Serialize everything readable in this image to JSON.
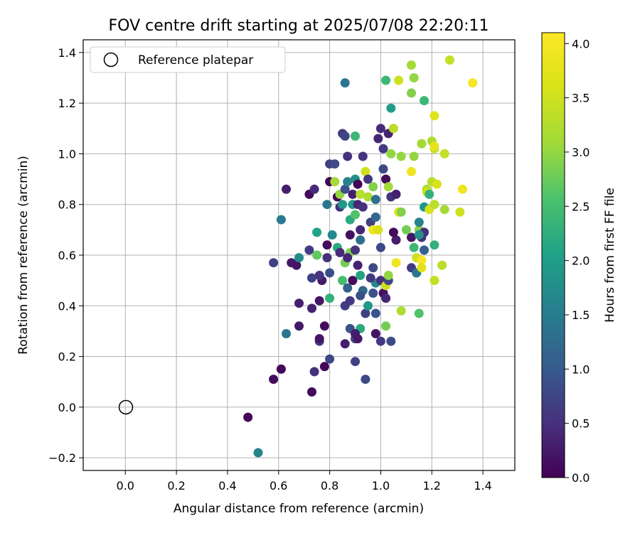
{
  "chart_data": {
    "type": "scatter",
    "title": "FOV centre drift starting at 2025/07/08 22:20:11",
    "xlabel": "Angular distance from reference (arcmin)",
    "ylabel": "Rotation from reference (arcmin)",
    "xlim": [
      -0.165,
      1.525
    ],
    "ylim": [
      -0.25,
      1.45
    ],
    "x_ticks": [
      0.0,
      0.2,
      0.4,
      0.6,
      0.8,
      1.0,
      1.2,
      1.4
    ],
    "x_tick_labels": [
      "0.0",
      "0.2",
      "0.4",
      "0.6",
      "0.8",
      "1.0",
      "1.2",
      "1.4"
    ],
    "y_ticks": [
      -0.2,
      0.0,
      0.2,
      0.4,
      0.6,
      0.8,
      1.0,
      1.2,
      1.4
    ],
    "y_tick_labels": [
      "−0.2",
      "0.0",
      "0.2",
      "0.4",
      "0.6",
      "0.8",
      "1.0",
      "1.2",
      "1.4"
    ],
    "grid": true,
    "legend": {
      "placement": "top-left",
      "entries": [
        "Reference platepar"
      ]
    },
    "reference_point": {
      "x": 0.0,
      "y": 0.0
    },
    "colorbar": {
      "label": "Hours from first FF file",
      "colormap": "viridis",
      "range": [
        0.0,
        4.1
      ],
      "ticks": [
        0.0,
        0.5,
        1.0,
        1.5,
        2.0,
        2.5,
        3.0,
        3.5,
        4.0
      ],
      "tick_labels": [
        "0.0",
        "0.5",
        "1.0",
        "1.5",
        "2.0",
        "2.5",
        "3.0",
        "3.5",
        "4.0"
      ]
    },
    "points": [
      [
        0.48,
        -0.04,
        0.05
      ],
      [
        0.52,
        -0.18,
        1.6
      ],
      [
        0.58,
        0.11,
        0.1
      ],
      [
        0.61,
        0.15,
        0.05
      ],
      [
        0.73,
        0.06,
        0.1
      ],
      [
        0.74,
        0.14,
        0.5
      ],
      [
        0.78,
        0.16,
        0.05
      ],
      [
        0.8,
        0.19,
        0.75
      ],
      [
        0.86,
        0.25,
        0.3
      ],
      [
        0.9,
        0.18,
        0.7
      ],
      [
        0.94,
        0.11,
        0.8
      ],
      [
        0.63,
        0.29,
        1.4
      ],
      [
        0.68,
        0.32,
        0.25
      ],
      [
        0.76,
        0.26,
        0.6
      ],
      [
        0.76,
        0.27,
        0.2
      ],
      [
        0.78,
        0.32,
        0.1
      ],
      [
        0.88,
        0.31,
        0.9
      ],
      [
        0.9,
        0.27,
        0.8
      ],
      [
        0.92,
        0.31,
        2.2
      ],
      [
        0.9,
        0.29,
        0.3
      ],
      [
        0.91,
        0.27,
        0.25
      ],
      [
        0.98,
        0.29,
        0.2
      ],
      [
        1.0,
        0.26,
        0.6
      ],
      [
        1.04,
        0.26,
        0.8
      ],
      [
        1.02,
        0.32,
        2.8
      ],
      [
        0.58,
        0.57,
        0.7
      ],
      [
        0.65,
        0.57,
        0.25
      ],
      [
        0.67,
        0.56,
        0.2
      ],
      [
        0.68,
        0.59,
        1.7
      ],
      [
        0.68,
        0.41,
        0.3
      ],
      [
        0.73,
        0.39,
        0.35
      ],
      [
        0.76,
        0.42,
        0.2
      ],
      [
        0.73,
        0.51,
        0.7
      ],
      [
        0.72,
        0.62,
        0.65
      ],
      [
        0.77,
        0.5,
        0.25
      ],
      [
        0.76,
        0.52,
        0.55
      ],
      [
        0.75,
        0.6,
        2.7
      ],
      [
        0.79,
        0.64,
        0.1
      ],
      [
        0.79,
        0.59,
        0.5
      ],
      [
        0.8,
        0.53,
        0.85
      ],
      [
        0.8,
        0.43,
        2.3
      ],
      [
        0.83,
        0.63,
        2.2
      ],
      [
        0.84,
        0.61,
        0.45
      ],
      [
        0.85,
        0.5,
        2.5
      ],
      [
        0.86,
        0.4,
        0.65
      ],
      [
        0.87,
        0.47,
        1.1
      ],
      [
        0.88,
        0.42,
        0.6
      ],
      [
        0.89,
        0.5,
        0.1
      ],
      [
        0.86,
        0.57,
        2.8
      ],
      [
        0.88,
        0.61,
        2.9
      ],
      [
        0.87,
        0.59,
        0.4
      ],
      [
        0.9,
        0.62,
        0.55
      ],
      [
        0.91,
        0.56,
        0.35
      ],
      [
        0.92,
        0.52,
        2.1
      ],
      [
        0.93,
        0.46,
        1.2
      ],
      [
        0.92,
        0.44,
        0.85
      ],
      [
        0.94,
        0.37,
        0.7
      ],
      [
        0.95,
        0.4,
        1.9
      ],
      [
        0.97,
        0.45,
        0.9
      ],
      [
        0.98,
        0.37,
        0.95
      ],
      [
        0.98,
        0.49,
        1.7
      ],
      [
        0.97,
        0.55,
        0.8
      ],
      [
        0.96,
        0.51,
        0.6
      ],
      [
        1.0,
        0.63,
        0.8
      ],
      [
        1.0,
        0.5,
        0.5
      ],
      [
        1.01,
        0.45,
        0.15
      ],
      [
        1.02,
        0.43,
        0.4
      ],
      [
        1.02,
        0.48,
        3.5
      ],
      [
        1.03,
        0.5,
        0.75
      ],
      [
        1.03,
        0.52,
        3.0
      ],
      [
        1.06,
        0.57,
        3.9
      ],
      [
        1.06,
        0.66,
        3.8
      ],
      [
        1.06,
        0.66,
        0.3
      ],
      [
        1.05,
        0.69,
        0.1
      ],
      [
        1.08,
        0.38,
        3.2
      ],
      [
        1.12,
        0.55,
        0.6
      ],
      [
        1.12,
        0.67,
        0.2
      ],
      [
        1.14,
        0.53,
        1.4
      ],
      [
        1.14,
        0.59,
        3.5
      ],
      [
        1.15,
        0.37,
        2.6
      ],
      [
        1.13,
        0.63,
        2.4
      ],
      [
        1.16,
        0.58,
        4.0
      ],
      [
        1.16,
        0.55,
        3.7
      ],
      [
        1.17,
        0.62,
        1.1
      ],
      [
        1.16,
        0.67,
        0.5
      ],
      [
        1.15,
        0.7,
        2.9
      ],
      [
        1.17,
        0.69,
        0.5
      ],
      [
        1.21,
        0.64,
        2.3
      ],
      [
        1.21,
        0.5,
        3.4
      ],
      [
        1.24,
        0.56,
        3.3
      ],
      [
        0.61,
        0.74,
        1.5
      ],
      [
        0.63,
        0.86,
        0.3
      ],
      [
        0.72,
        0.84,
        0.1
      ],
      [
        0.74,
        0.86,
        0.45
      ],
      [
        0.75,
        0.69,
        2.1
      ],
      [
        0.79,
        0.8,
        1.4
      ],
      [
        0.8,
        0.89,
        0.05
      ],
      [
        0.8,
        0.96,
        0.7
      ],
      [
        0.81,
        0.68,
        1.7
      ],
      [
        0.82,
        0.96,
        0.8
      ],
      [
        0.82,
        0.89,
        3.1
      ],
      [
        0.83,
        0.83,
        0.05
      ],
      [
        0.84,
        0.79,
        0.5
      ],
      [
        0.84,
        0.84,
        3.0
      ],
      [
        0.85,
        0.8,
        1.9
      ],
      [
        0.85,
        1.08,
        0.6
      ],
      [
        0.86,
        1.07,
        0.75
      ],
      [
        0.86,
        0.86,
        0.9
      ],
      [
        0.87,
        0.89,
        1.6
      ],
      [
        0.87,
        0.99,
        0.5
      ],
      [
        0.88,
        0.68,
        0.15
      ],
      [
        0.88,
        0.74,
        2.2
      ],
      [
        0.89,
        0.8,
        1.9
      ],
      [
        0.89,
        0.84,
        0.3
      ],
      [
        0.9,
        0.9,
        1.8
      ],
      [
        0.9,
        1.07,
        2.4
      ],
      [
        0.9,
        0.76,
        2.6
      ],
      [
        0.91,
        0.8,
        0.4
      ],
      [
        0.91,
        0.88,
        0.05
      ],
      [
        0.92,
        0.84,
        3.3
      ],
      [
        0.92,
        0.7,
        0.4
      ],
      [
        0.92,
        0.66,
        1.3
      ],
      [
        0.93,
        0.79,
        0.5
      ],
      [
        0.93,
        0.99,
        0.55
      ],
      [
        0.94,
        0.93,
        3.5
      ],
      [
        0.95,
        0.9,
        0.6
      ],
      [
        0.95,
        0.83,
        3.2
      ],
      [
        0.96,
        0.73,
        0.7
      ],
      [
        0.97,
        0.87,
        2.9
      ],
      [
        0.97,
        0.7,
        3.9
      ],
      [
        0.98,
        0.82,
        1.3
      ],
      [
        0.98,
        0.75,
        1.2
      ],
      [
        0.99,
        0.7,
        3.6
      ],
      [
        0.99,
        1.06,
        0.4
      ],
      [
        1.0,
        1.1,
        0.45
      ],
      [
        1.01,
        1.02,
        0.6
      ],
      [
        1.01,
        0.94,
        0.8
      ],
      [
        1.02,
        0.9,
        0.1
      ],
      [
        1.03,
        0.87,
        3.1
      ],
      [
        1.03,
        1.08,
        0.35
      ],
      [
        1.04,
        0.83,
        0.5
      ],
      [
        1.04,
        1.0,
        3.0
      ],
      [
        1.05,
        1.1,
        3.3
      ],
      [
        1.06,
        0.84,
        0.35
      ],
      [
        1.07,
        0.77,
        3.7
      ],
      [
        1.08,
        0.99,
        3.0
      ],
      [
        1.08,
        0.77,
        2.9
      ],
      [
        1.1,
        0.7,
        2.8
      ],
      [
        1.12,
        0.93,
        3.9
      ],
      [
        1.13,
        0.99,
        3.0
      ],
      [
        1.15,
        0.73,
        1.6
      ],
      [
        1.15,
        0.68,
        1.8
      ],
      [
        1.16,
        1.04,
        3.0
      ],
      [
        1.17,
        0.79,
        1.9
      ],
      [
        1.18,
        0.86,
        3.2
      ],
      [
        1.18,
        0.85,
        3.5
      ],
      [
        1.19,
        0.78,
        3.6
      ],
      [
        1.19,
        0.84,
        2.3
      ],
      [
        1.2,
        0.89,
        3.3
      ],
      [
        1.2,
        1.05,
        3.2
      ],
      [
        1.21,
        1.02,
        3.4
      ],
      [
        1.21,
        0.8,
        3.3
      ],
      [
        1.22,
        0.88,
        3.6
      ],
      [
        1.25,
        1.0,
        3.4
      ],
      [
        1.25,
        0.78,
        3.1
      ],
      [
        1.31,
        0.77,
        3.5
      ],
      [
        1.32,
        0.86,
        3.9
      ],
      [
        0.86,
        1.28,
        1.4
      ],
      [
        1.02,
        1.29,
        2.4
      ],
      [
        1.04,
        1.18,
        2.0
      ],
      [
        1.07,
        1.29,
        3.5
      ],
      [
        1.12,
        1.35,
        3.1
      ],
      [
        1.13,
        1.3,
        3.0
      ],
      [
        1.12,
        1.24,
        2.9
      ],
      [
        1.17,
        1.21,
        2.4
      ],
      [
        1.21,
        1.15,
        3.7
      ],
      [
        1.27,
        1.37,
        3.4
      ],
      [
        1.36,
        1.28,
        4.0
      ],
      [
        1.16,
        1.04,
        3.1
      ],
      [
        1.21,
        1.03,
        3.8
      ]
    ]
  }
}
